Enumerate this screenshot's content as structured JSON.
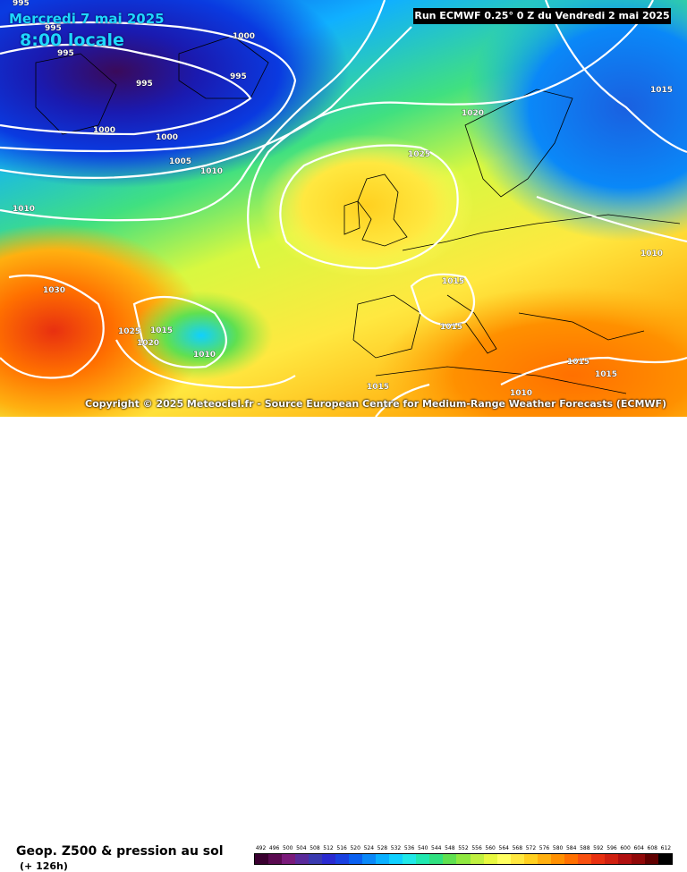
{
  "header": {
    "date": "Mercredi 7 mai 2025",
    "time": "8:00 locale",
    "run": "Run ECMWF 0.25° 0 Z du Vendredi 2 mai 2025"
  },
  "copyright": "Copyright © 2025 Meteociel.fr - Source European Centre for Medium-Range Weather Forecasts (ECMWF)",
  "footer": {
    "title": "Geop. Z500 & pression au sol",
    "lead": "(+ 126h)"
  },
  "isobar_labels": [
    "995",
    "995",
    "1000",
    "995",
    "995",
    "995",
    "1000",
    "1000",
    "1005",
    "1010",
    "1010",
    "1025",
    "1020",
    "1015",
    "1030",
    "1025",
    "1020",
    "1015",
    "1010",
    "1015",
    "1015",
    "1015",
    "1010",
    "1010",
    "1015",
    "1015"
  ],
  "scale": {
    "values": [
      "492",
      "496",
      "500",
      "504",
      "508",
      "512",
      "516",
      "520",
      "524",
      "528",
      "532",
      "536",
      "540",
      "544",
      "548",
      "552",
      "556",
      "560",
      "564",
      "568",
      "572",
      "576",
      "580",
      "584",
      "588",
      "592",
      "596",
      "600",
      "604",
      "608",
      "612"
    ],
    "colors": [
      "#3a0030",
      "#5a0a50",
      "#7a1a7a",
      "#5a2a9a",
      "#3a3ab0",
      "#2a2ad0",
      "#1a40e0",
      "#0a60f0",
      "#0a88f8",
      "#0ab0ff",
      "#10d0ff",
      "#20e8e8",
      "#20e8b0",
      "#30e080",
      "#60e050",
      "#90e840",
      "#c0f040",
      "#e8f840",
      "#ffff60",
      "#ffe840",
      "#ffd020",
      "#ffb010",
      "#ff9000",
      "#ff7000",
      "#f85010",
      "#e83010",
      "#d02010",
      "#b01010",
      "#900808",
      "#600000",
      "#000000"
    ]
  }
}
